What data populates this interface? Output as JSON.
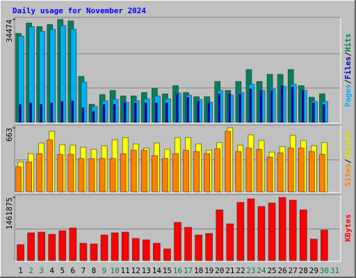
{
  "chart_data": {
    "type": "bar",
    "title": "Daily usage for November 2024",
    "categories": [
      "1",
      "2",
      "3",
      "4",
      "5",
      "6",
      "7",
      "8",
      "9",
      "10",
      "11",
      "12",
      "13",
      "14",
      "15",
      "16",
      "17",
      "18",
      "19",
      "20",
      "21",
      "22",
      "23",
      "24",
      "25",
      "26",
      "27",
      "28",
      "29",
      "30",
      "31"
    ],
    "category_colors": [
      "#000000",
      "#008040",
      "#008040",
      "#000000",
      "#000000",
      "#000000",
      "#000000",
      "#000000",
      "#008040",
      "#008040",
      "#000000",
      "#000000",
      "#000000",
      "#000000",
      "#000000",
      "#008040",
      "#008040",
      "#000000",
      "#000000",
      "#000000",
      "#000000",
      "#000000",
      "#008040",
      "#008040",
      "#000000",
      "#000000",
      "#000000",
      "#000000",
      "#000000",
      "#008040",
      "#008040"
    ],
    "legend_separator": "/",
    "panels": [
      {
        "ylim": [
          0,
          34474
        ],
        "yticks": [
          34474
        ],
        "grid_divisions": 3,
        "series": [
          {
            "name": "Hits",
            "color": "#008060",
            "values": [
              29800,
              33300,
              32100,
              32800,
              34474,
              34000,
              15400,
              6060,
              9300,
              10700,
              8850,
              8850,
              10000,
              11400,
              9550,
              12300,
              10000,
              8600,
              8600,
              13700,
              10700,
              13700,
              17700,
              13700,
              16100,
              16100,
              17700,
              12300,
              8400,
              9550,
              0
            ]
          },
          {
            "name": "Files",
            "color": "#0000c0",
            "values": [
              6050,
              6500,
              6050,
              6500,
              7000,
              7200,
              4900,
              3700,
              6050,
              6050,
              6500,
              6500,
              6500,
              6500,
              6500,
              9550,
              8400,
              7200,
              6500,
              9550,
              9550,
              9550,
              11200,
              10700,
              10700,
              12300,
              11900,
              10700,
              6500,
              6050,
              0
            ]
          },
          {
            "name": "Pages",
            "color": "#00b0f0",
            "values": [
              28900,
              32100,
              30500,
              31200,
              32400,
              31200,
              13500,
              5350,
              7200,
              7700,
              6750,
              7200,
              7900,
              8850,
              7900,
              9800,
              9100,
              7700,
              6750,
              10700,
              9100,
              10000,
              12800,
              10700,
              11200,
              12100,
              12800,
              10700,
              7000,
              7000,
              0
            ]
          }
        ]
      },
      {
        "ylim": [
          0,
          663
        ],
        "yticks": [
          663
        ],
        "grid_divisions": 2,
        "series": [
          {
            "name": "Visits",
            "color": "#ffff00",
            "values": [
              310,
              396,
              505,
              627,
              490,
              483,
              461,
              440,
              476,
              540,
              562,
              497,
              454,
              505,
              440,
              562,
              562,
              497,
              432,
              512,
              663,
              483,
              591,
              533,
              411,
              469,
              584,
              533,
              476,
              512,
              0
            ]
          },
          {
            "name": "Sites",
            "color": "#ff8000",
            "values": [
              260,
              310,
              396,
              540,
              389,
              389,
              346,
              346,
              346,
              346,
              396,
              432,
              432,
              375,
              346,
              396,
              432,
              418,
              396,
              447,
              627,
              418,
              454,
              440,
              360,
              404,
              454,
              454,
              418,
              389,
              0
            ]
          }
        ]
      },
      {
        "ylim": [
          0,
          1461875
        ],
        "yticks": [
          1461875
        ],
        "grid_divisions": 2,
        "series": [
          {
            "name": "KBytes",
            "color": "#ff0000",
            "values": [
              370000,
              643000,
              659000,
              610000,
              691000,
              755000,
              402000,
              386000,
              594000,
              643000,
              659000,
              514000,
              482000,
              402000,
              273000,
              884000,
              771000,
              594000,
              627000,
              1173000,
              851000,
              1349000,
              1430000,
              1253000,
              1333000,
              1461875,
              1398000,
              1173000,
              498000,
              707000,
              0
            ]
          }
        ]
      }
    ]
  }
}
